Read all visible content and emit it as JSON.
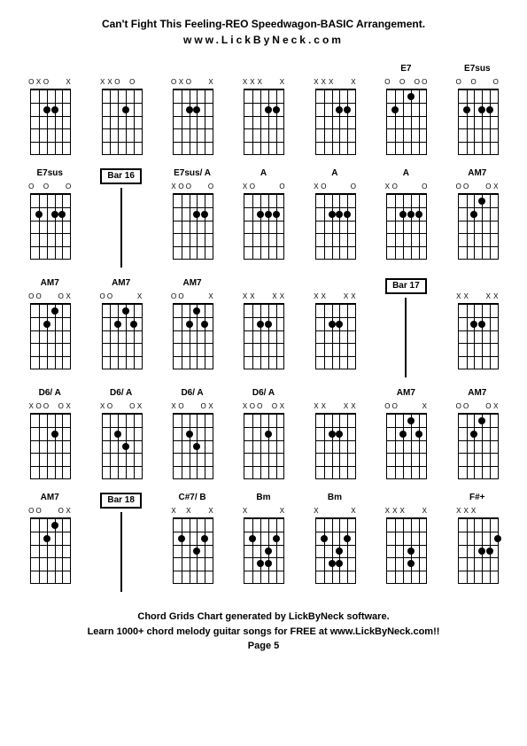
{
  "header": {
    "title": "Can't Fight This Feeling-REO Speedwagon-BASIC Arrangement.",
    "subtitle": "www.LickByNeck.com"
  },
  "footer": {
    "line1": "Chord Grids Chart generated by LickByNeck software.",
    "line2": "Learn 1000+ chord melody guitar songs for FREE at www.LickByNeck.com!!",
    "page": "Page 5"
  },
  "styling": {
    "background_color": "#ffffff",
    "text_color": "#000000",
    "grid_columns": 7,
    "grid_rows": 5,
    "chord_width": 60,
    "chord_height": 90,
    "fretboard_width": 44,
    "fretboard_height": 72,
    "num_frets": 5,
    "num_strings": 6,
    "dot_size": 8,
    "font_size_title": 12,
    "font_size_label": 10,
    "font_size_footer": 11
  },
  "chords": [
    {
      "label": "",
      "markers": [
        "O",
        "X",
        "O",
        "",
        "",
        "X"
      ],
      "dots": [
        [
          2,
          2
        ],
        [
          2,
          3
        ]
      ]
    },
    {
      "label": "",
      "markers": [
        "X",
        "X",
        "O",
        "",
        "O",
        ""
      ],
      "dots": [
        [
          2,
          3
        ]
      ]
    },
    {
      "label": "",
      "markers": [
        "O",
        "X",
        "O",
        "",
        "",
        "X"
      ],
      "dots": [
        [
          2,
          2
        ],
        [
          2,
          3
        ]
      ]
    },
    {
      "label": "",
      "markers": [
        "X",
        "X",
        "X",
        "",
        "",
        "X"
      ],
      "dots": [
        [
          2,
          3
        ],
        [
          2,
          4
        ]
      ]
    },
    {
      "label": "",
      "markers": [
        "X",
        "X",
        "X",
        "",
        "",
        "X"
      ],
      "dots": [
        [
          2,
          3
        ],
        [
          2,
          4
        ]
      ]
    },
    {
      "label": "E7",
      "markers": [
        "O",
        "",
        "O",
        "",
        "O",
        "O"
      ],
      "dots": [
        [
          1,
          3
        ],
        [
          2,
          1
        ]
      ]
    },
    {
      "label": "E7sus",
      "markers": [
        "O",
        "",
        "O",
        "",
        "",
        "O"
      ],
      "dots": [
        [
          2,
          1
        ],
        [
          2,
          3
        ],
        [
          2,
          4
        ]
      ]
    },
    {
      "label": "E7sus",
      "markers": [
        "O",
        "",
        "O",
        "",
        "",
        "O"
      ],
      "dots": [
        [
          2,
          1
        ],
        [
          2,
          3
        ],
        [
          2,
          4
        ]
      ]
    },
    {
      "type": "bar",
      "label": "Bar 16"
    },
    {
      "label": "E7sus/ A",
      "markers": [
        "X",
        "O",
        "O",
        "",
        "",
        "O"
      ],
      "dots": [
        [
          2,
          3
        ],
        [
          2,
          4
        ]
      ]
    },
    {
      "label": "A",
      "markers": [
        "X",
        "O",
        "",
        "",
        "",
        "O"
      ],
      "dots": [
        [
          2,
          2
        ],
        [
          2,
          3
        ],
        [
          2,
          4
        ]
      ]
    },
    {
      "label": "A",
      "markers": [
        "X",
        "O",
        "",
        "",
        "",
        "O"
      ],
      "dots": [
        [
          2,
          2
        ],
        [
          2,
          3
        ],
        [
          2,
          4
        ]
      ]
    },
    {
      "label": "A",
      "markers": [
        "X",
        "O",
        "",
        "",
        "",
        "O"
      ],
      "dots": [
        [
          2,
          2
        ],
        [
          2,
          3
        ],
        [
          2,
          4
        ]
      ]
    },
    {
      "label": "AM7",
      "markers": [
        "O",
        "O",
        "",
        "",
        "O",
        "X"
      ],
      "dots": [
        [
          1,
          3
        ],
        [
          2,
          2
        ]
      ]
    },
    {
      "label": "AM7",
      "markers": [
        "O",
        "O",
        "",
        "",
        "O",
        "X"
      ],
      "dots": [
        [
          1,
          3
        ],
        [
          2,
          2
        ]
      ]
    },
    {
      "label": "AM7",
      "markers": [
        "O",
        "O",
        "",
        "",
        "",
        "X"
      ],
      "dots": [
        [
          1,
          3
        ],
        [
          2,
          2
        ],
        [
          2,
          4
        ]
      ]
    },
    {
      "label": "AM7",
      "markers": [
        "O",
        "O",
        "",
        "",
        "",
        "X"
      ],
      "dots": [
        [
          1,
          3
        ],
        [
          2,
          2
        ],
        [
          2,
          4
        ]
      ]
    },
    {
      "label": "",
      "markers": [
        "X",
        "X",
        "",
        "",
        "X",
        "X"
      ],
      "dots": [
        [
          2,
          2
        ],
        [
          2,
          3
        ]
      ]
    },
    {
      "label": "",
      "markers": [
        "X",
        "X",
        "",
        "",
        "X",
        "X"
      ],
      "dots": [
        [
          2,
          2
        ],
        [
          2,
          3
        ]
      ]
    },
    {
      "type": "bar",
      "label": "Bar 17"
    },
    {
      "label": "",
      "markers": [
        "X",
        "X",
        "",
        "",
        "X",
        "X"
      ],
      "dots": [
        [
          2,
          2
        ],
        [
          2,
          3
        ]
      ]
    },
    {
      "label": "D6/ A",
      "markers": [
        "X",
        "O",
        "O",
        "",
        "O",
        "X"
      ],
      "dots": [
        [
          2,
          3
        ]
      ]
    },
    {
      "label": "D6/ A",
      "markers": [
        "X",
        "O",
        "",
        "",
        "O",
        "X"
      ],
      "dots": [
        [
          2,
          2
        ],
        [
          3,
          3
        ]
      ]
    },
    {
      "label": "D6/ A",
      "markers": [
        "X",
        "O",
        "",
        "",
        "O",
        "X"
      ],
      "dots": [
        [
          2,
          2
        ],
        [
          3,
          3
        ]
      ]
    },
    {
      "label": "D6/ A",
      "markers": [
        "X",
        "O",
        "O",
        "",
        "O",
        "X"
      ],
      "dots": [
        [
          2,
          3
        ]
      ]
    },
    {
      "label": "",
      "markers": [
        "X",
        "X",
        "",
        "",
        "X",
        "X"
      ],
      "dots": [
        [
          2,
          2
        ],
        [
          2,
          3
        ]
      ]
    },
    {
      "label": "AM7",
      "markers": [
        "O",
        "O",
        "",
        "",
        "",
        "X"
      ],
      "dots": [
        [
          1,
          3
        ],
        [
          2,
          2
        ],
        [
          2,
          4
        ]
      ]
    },
    {
      "label": "AM7",
      "markers": [
        "O",
        "O",
        "",
        "",
        "O",
        "X"
      ],
      "dots": [
        [
          1,
          3
        ],
        [
          2,
          2
        ]
      ]
    },
    {
      "label": "AM7",
      "markers": [
        "O",
        "O",
        "",
        "",
        "O",
        "X"
      ],
      "dots": [
        [
          1,
          3
        ],
        [
          2,
          2
        ]
      ]
    },
    {
      "type": "bar",
      "label": "Bar 18"
    },
    {
      "label": "C#7/ B",
      "markers": [
        "X",
        "",
        "X",
        "",
        "",
        "X"
      ],
      "dots": [
        [
          2,
          1
        ],
        [
          2,
          4
        ],
        [
          3,
          3
        ]
      ]
    },
    {
      "label": "Bm",
      "markers": [
        "X",
        "",
        "",
        "",
        "",
        "X"
      ],
      "dots": [
        [
          2,
          1
        ],
        [
          2,
          4
        ],
        [
          3,
          3
        ],
        [
          4,
          2
        ],
        [
          4,
          3
        ]
      ]
    },
    {
      "label": "Bm",
      "markers": [
        "X",
        "",
        "",
        "",
        "",
        "X"
      ],
      "dots": [
        [
          2,
          1
        ],
        [
          2,
          4
        ],
        [
          3,
          3
        ],
        [
          4,
          2
        ],
        [
          4,
          3
        ]
      ]
    },
    {
      "label": "",
      "markers": [
        "X",
        "X",
        "X",
        "",
        "",
        "X"
      ],
      "dots": [
        [
          3,
          3
        ],
        [
          4,
          3
        ]
      ]
    },
    {
      "label": "F#+",
      "markers": [
        "X",
        "X",
        "X",
        "",
        "",
        ""
      ],
      "dots": [
        [
          2,
          5
        ],
        [
          3,
          3
        ],
        [
          3,
          4
        ]
      ]
    }
  ]
}
